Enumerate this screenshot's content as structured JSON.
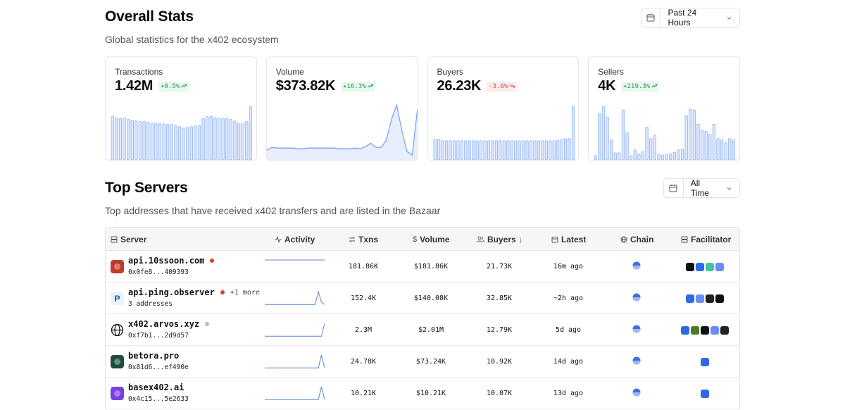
{
  "overall": {
    "title": "Overall Stats",
    "subtitle": "Global statistics for the x402 ecosystem",
    "range": "Past 24 Hours"
  },
  "cards": [
    {
      "title": "Transactions",
      "value": "1.42M",
      "delta": "+0.5%",
      "trend": "up",
      "kind": "bars",
      "series": [
        60,
        58,
        57,
        58,
        56,
        55,
        54,
        53,
        53,
        52,
        51,
        51,
        50,
        50,
        49,
        49,
        48,
        46,
        44,
        45,
        46,
        47,
        48,
        57,
        60,
        60,
        58,
        57,
        58,
        57,
        56,
        53,
        50,
        51,
        53,
        74
      ]
    },
    {
      "title": "Volume",
      "value": "$373.82K",
      "delta": "+16.3%",
      "trend": "up",
      "kind": "line",
      "series": [
        12,
        16,
        15,
        15,
        15,
        15,
        14,
        14,
        15,
        15,
        15,
        15,
        15,
        15,
        14,
        14,
        14,
        15,
        14,
        17,
        22,
        16,
        16,
        26,
        56,
        77,
        40,
        10,
        5,
        70
      ]
    },
    {
      "title": "Buyers",
      "value": "26.23K",
      "delta": "-3.6%",
      "trend": "down",
      "kind": "bars",
      "series": [
        30,
        30,
        28,
        28,
        28,
        28,
        28,
        28,
        28,
        28,
        28,
        28,
        28,
        28,
        28,
        28,
        28,
        28,
        28,
        28,
        28,
        28,
        28,
        28,
        28,
        28,
        28,
        28,
        28,
        28,
        28,
        28,
        29,
        30,
        31,
        31,
        78
      ]
    },
    {
      "title": "Sellers",
      "value": "4K",
      "delta": "+219.3%",
      "trend": "up",
      "kind": "bars",
      "series": [
        6,
        65,
        75,
        60,
        28,
        10,
        10,
        70,
        38,
        6,
        14,
        8,
        12,
        46,
        30,
        35,
        8,
        7,
        8,
        9,
        11,
        14,
        15,
        62,
        71,
        70,
        50,
        42,
        40,
        36,
        50,
        30,
        28,
        24,
        30,
        28
      ]
    }
  ],
  "servers_section": {
    "title": "Top Servers",
    "subtitle": "Top addresses that have received x402 transfers and are listed in the Bazaar",
    "range": "All Time"
  },
  "table": {
    "headers": {
      "server": "Server",
      "activity": "Activity",
      "txns": "Txns",
      "volume": "Volume",
      "buyers": "Buyers",
      "latest": "Latest",
      "chain": "Chain",
      "facilitator": "Facilitator"
    },
    "rows": [
      {
        "name": "api.10ssoon.com",
        "addr": "0x0fe8...409393",
        "status_color": "#e53935",
        "more": "",
        "txns": "181.86K",
        "volume": "$181.86K",
        "buyers": "21.73K",
        "latest": "16m ago",
        "icon": "10ssoon-logo-icon",
        "icon_color": "#c0392b",
        "activity": [
          1,
          1,
          1,
          1,
          1,
          1,
          1,
          1,
          1,
          1,
          1,
          1,
          1,
          1,
          1,
          1,
          1,
          1,
          1,
          1
        ],
        "facilitators": [
          [
            "#111111",
            "n-logo-icon"
          ],
          [
            "#2f6ae6",
            "coinbase-icon"
          ],
          [
            "#3fc8a0",
            "leaf-icon"
          ],
          [
            "#6b8cf5",
            "layers-icon"
          ]
        ]
      },
      {
        "name": "api.ping.observer",
        "addr": "3 addresses",
        "status_color": "#e53935",
        "more": "+1 more",
        "txns": "152.4K",
        "volume": "$140.08K",
        "buyers": "32.85K",
        "latest": "~2h ago",
        "icon": "paypal-logo-icon",
        "icon_color": "#eaf2fb",
        "activity": [
          1,
          1,
          1,
          1,
          1,
          1,
          1,
          1,
          1,
          1,
          1,
          1,
          1,
          1,
          1,
          1,
          1,
          12,
          3,
          1
        ],
        "facilitators": [
          [
            "#2f6ae6",
            "coinbase-icon"
          ],
          [
            "#6b8cf5",
            "layers-icon"
          ],
          [
            "#222222",
            "circle-logo-icon"
          ],
          [
            "#111111",
            "grid-logo-icon"
          ]
        ]
      },
      {
        "name": "x402.arvos.xyz",
        "addr": "0xf7b1...2d9d57",
        "status_color": "#bdbdbd",
        "more": "",
        "txns": "2.3M",
        "volume": "$2.01M",
        "buyers": "12.79K",
        "latest": "5d ago",
        "icon": "globe-icon",
        "icon_color": "#ffffff",
        "activity": [
          1,
          1,
          1,
          1,
          1,
          1,
          1,
          1,
          1,
          1,
          1,
          1,
          1,
          1,
          1,
          1,
          1,
          1,
          1,
          12
        ],
        "facilitators": [
          [
            "#2f6ae6",
            "coinbase-icon"
          ],
          [
            "#4b7a2b",
            "sprout-icon"
          ],
          [
            "#111111",
            "grid-logo-icon"
          ],
          [
            "#6b8cf5",
            "layers-icon"
          ],
          [
            "#222222",
            "circle-logo-icon"
          ]
        ]
      },
      {
        "name": "betora.pro",
        "addr": "0x81d6...ef490e",
        "status_color": "",
        "more": "",
        "txns": "24.78K",
        "volume": "$73.24K",
        "buyers": "10.92K",
        "latest": "14d ago",
        "icon": "betora-logo-icon",
        "icon_color": "#1b4d3e",
        "activity": [
          1,
          1,
          1,
          1,
          1,
          1,
          1,
          1,
          1,
          1,
          1,
          1,
          1,
          1,
          1,
          1,
          1,
          1,
          12,
          1
        ],
        "facilitators": [
          [
            "#2f6ae6",
            "coinbase-icon"
          ]
        ]
      },
      {
        "name": "basex402.ai",
        "addr": "0x4c15...5e2633",
        "status_color": "",
        "more": "",
        "txns": "10.21K",
        "volume": "$10.21K",
        "buyers": "10.07K",
        "latest": "13d ago",
        "icon": "basex-logo-icon",
        "icon_color": "#7b3fe4",
        "activity": [
          1,
          1,
          1,
          1,
          1,
          1,
          1,
          1,
          1,
          1,
          1,
          1,
          1,
          1,
          1,
          1,
          1,
          1,
          12,
          1
        ],
        "facilitators": [
          [
            "#2f6ae6",
            "coinbase-icon"
          ]
        ]
      }
    ]
  }
}
